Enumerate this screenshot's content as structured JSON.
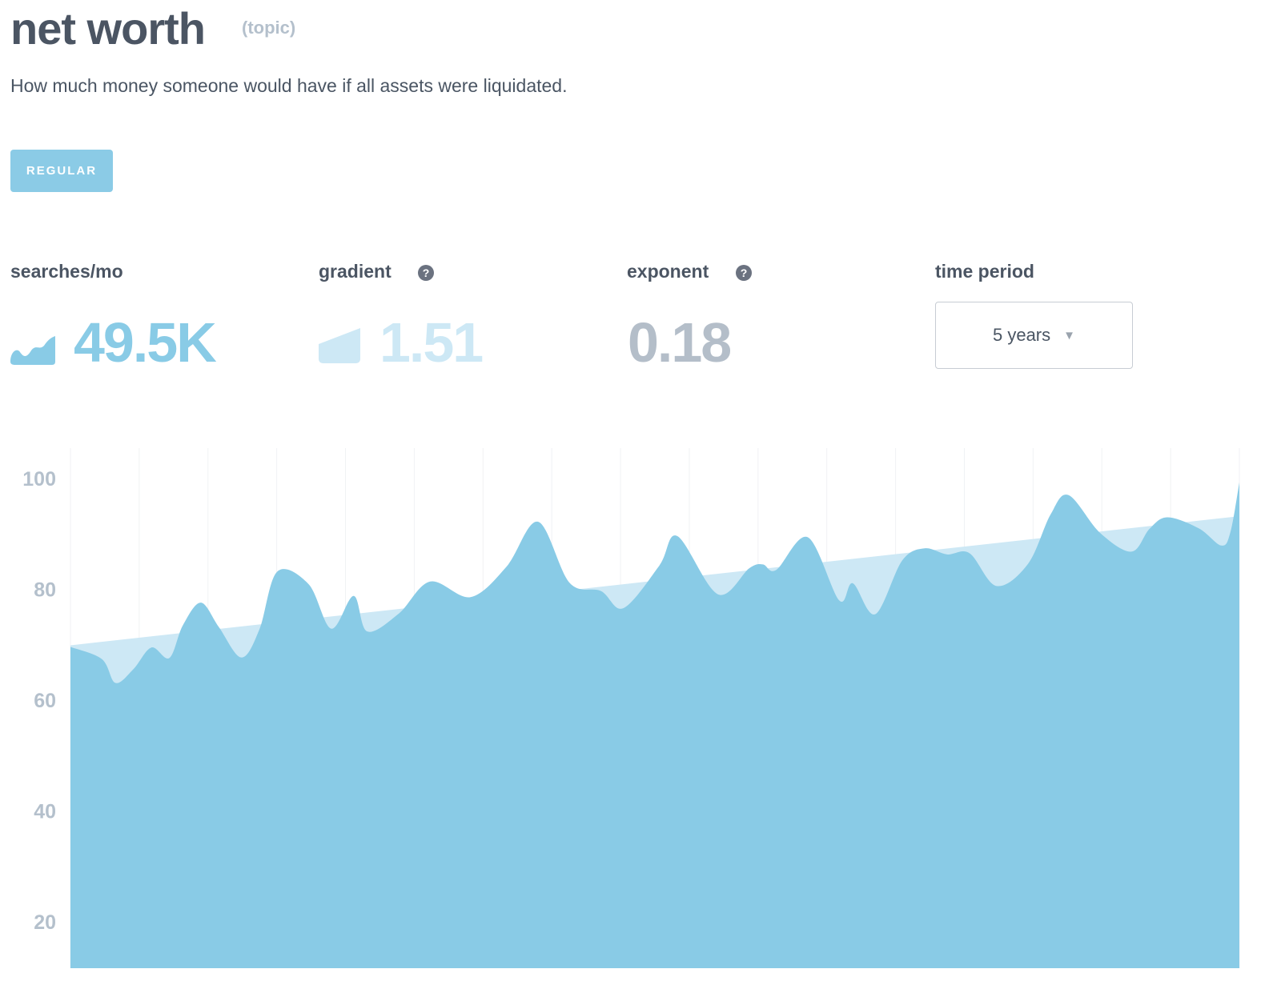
{
  "header": {
    "title": "net worth",
    "tag": "(topic)",
    "description": "How much money someone would have if all assets were liquidated.",
    "badge": "REGULAR"
  },
  "stats": {
    "searches": {
      "label": "searches/mo",
      "value": "49.5K",
      "color": "#89cbe6"
    },
    "gradient": {
      "label": "gradient",
      "value": "1.51",
      "color": "#cde8f5",
      "help": "?"
    },
    "exponent": {
      "label": "exponent",
      "value": "0.18",
      "color": "#b4bec9",
      "help": "?"
    },
    "time_period": {
      "label": "time period",
      "selected": "5 years"
    }
  },
  "colors": {
    "area": "#89cbe6",
    "trend": "#cde8f5",
    "grid": "#f0f2f4"
  },
  "chart_data": {
    "type": "area",
    "yticks": [
      100,
      80,
      60,
      40,
      20
    ],
    "ylim": [
      12,
      105
    ],
    "x_count": 261,
    "grid": true,
    "series": [
      {
        "values": [
          [
            0,
            69.6
          ],
          [
            7,
            67.4
          ],
          [
            10,
            63.1
          ],
          [
            14,
            65.6
          ],
          [
            18,
            69.5
          ],
          [
            22,
            67.6
          ],
          [
            25,
            73.5
          ],
          [
            29,
            77.6
          ],
          [
            33,
            73.2
          ],
          [
            38,
            67.7
          ],
          [
            42,
            72.7
          ],
          [
            46,
            83.2
          ],
          [
            53,
            80.9
          ],
          [
            58,
            72.9
          ],
          [
            63,
            78.8
          ],
          [
            66,
            72.4
          ],
          [
            73,
            75.6
          ],
          [
            80,
            81.4
          ],
          [
            89,
            78.6
          ],
          [
            97,
            84.1
          ],
          [
            104,
            92.2
          ],
          [
            111,
            81.2
          ],
          [
            118,
            79.7
          ],
          [
            123,
            76.6
          ],
          [
            131,
            84.3
          ],
          [
            135,
            89.6
          ],
          [
            144,
            79.1
          ],
          [
            151,
            83.8
          ],
          [
            154,
            84.5
          ],
          [
            157,
            83.5
          ],
          [
            164,
            89.4
          ],
          [
            171,
            78.0
          ],
          [
            174,
            81.1
          ],
          [
            179,
            75.5
          ],
          [
            185,
            85.2
          ],
          [
            190,
            87.4
          ],
          [
            195,
            86.3
          ],
          [
            200,
            86.5
          ],
          [
            206,
            80.6
          ],
          [
            213,
            84.6
          ],
          [
            218,
            93.5
          ],
          [
            222,
            97.0
          ],
          [
            229,
            90.2
          ],
          [
            236,
            86.8
          ],
          [
            240,
            90.9
          ],
          [
            244,
            93.0
          ],
          [
            251,
            91.0
          ],
          [
            256,
            87.9
          ],
          [
            258,
            90.3
          ],
          [
            260,
            99.3
          ]
        ]
      }
    ],
    "trend": {
      "start": 69.9,
      "end": 93.2
    }
  }
}
